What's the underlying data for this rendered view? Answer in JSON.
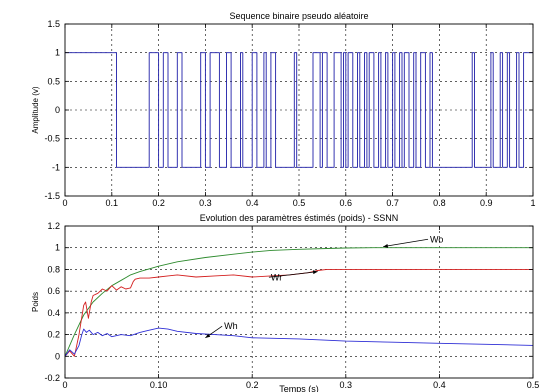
{
  "chart_data": [
    {
      "type": "line",
      "title": "Sequence binaire pseudo aléatoire",
      "xlabel": "",
      "ylabel": "Amplitude (v)",
      "xlim": [
        0,
        1
      ],
      "ylim": [
        -1.5,
        1.5
      ],
      "grid": true,
      "xticks": [
        "0",
        "0.1",
        "0.2",
        "0.3",
        "0.4",
        "0.5",
        "0.6",
        "0.7",
        "0.8",
        "0.9",
        "1"
      ],
      "yticks": [
        "-1.5",
        "-1",
        "-0.5",
        "0",
        "0.5",
        "1",
        "1.5"
      ],
      "colors": {
        "signal": "#1f1fa8"
      },
      "series": [
        {
          "style": "step",
          "x": [
            0,
            0.11,
            0.115,
            0.18,
            0.2,
            0.21,
            0.22,
            0.24,
            0.25,
            0.29,
            0.3,
            0.31,
            0.33,
            0.345,
            0.355,
            0.375,
            0.38,
            0.4,
            0.41,
            0.425,
            0.43,
            0.44,
            0.45,
            0.49,
            0.495,
            0.53,
            0.545,
            0.55,
            0.56,
            0.575,
            0.59,
            0.595,
            0.6,
            0.605,
            0.615,
            0.625,
            0.63,
            0.64,
            0.645,
            0.65,
            0.66,
            0.67,
            0.675,
            0.685,
            0.69,
            0.7,
            0.705,
            0.715,
            0.72,
            0.725,
            0.735,
            0.745,
            0.75,
            0.76,
            0.77,
            0.78,
            0.785,
            0.87,
            0.875,
            0.91,
            0.915,
            0.93,
            0.935,
            0.945,
            0.95,
            0.965,
            0.97,
            0.98,
            1.0
          ],
          "y": [
            1,
            -1,
            -1,
            1,
            -1,
            1,
            -1,
            1,
            -1,
            1,
            -1,
            1,
            -1,
            1,
            -1,
            1,
            -1,
            1,
            -1,
            1,
            -1,
            1,
            -1,
            1,
            -1,
            1,
            -1,
            1,
            -1,
            1,
            -1,
            1,
            -1,
            1,
            -1,
            1,
            -1,
            1,
            -1,
            1,
            -1,
            1,
            -1,
            1,
            -1,
            1,
            -1,
            1,
            -1,
            1,
            -1,
            1,
            -1,
            1,
            -1,
            1,
            -1,
            1,
            -1,
            1,
            -1,
            1,
            -1,
            1,
            -1,
            1,
            -1,
            1,
            1
          ]
        }
      ]
    },
    {
      "type": "line",
      "title": "Evolution des paramètres éstimés (poids) - SSNN",
      "xlabel": "Temps (s)",
      "ylabel": "Poids",
      "xlim": [
        0,
        0.5
      ],
      "ylim": [
        -0.2,
        1.2
      ],
      "grid": true,
      "xticks": [
        "0",
        "0.10",
        "0.2",
        "0.3",
        "0.4",
        "0.5"
      ],
      "yticks": [
        "-0.2",
        "0",
        "0.2",
        "0.4",
        "0.6",
        "0.8",
        "1",
        "1.2"
      ],
      "series": [
        {
          "name": "Wo",
          "color": "#2e8b2e",
          "x": [
            0,
            0.01,
            0.02,
            0.03,
            0.04,
            0.05,
            0.06,
            0.07,
            0.08,
            0.1,
            0.12,
            0.15,
            0.18,
            0.2,
            0.22,
            0.25,
            0.28,
            0.3,
            0.33,
            0.36,
            0.4,
            0.45,
            0.5
          ],
          "y": [
            0,
            0.2,
            0.38,
            0.5,
            0.58,
            0.65,
            0.7,
            0.75,
            0.78,
            0.83,
            0.87,
            0.91,
            0.94,
            0.96,
            0.975,
            0.985,
            0.993,
            0.997,
            1.0,
            1.0,
            1.0,
            1.0,
            1.0
          ]
        },
        {
          "name": "Wr",
          "color": "#d42020",
          "x": [
            0,
            0.005,
            0.01,
            0.015,
            0.02,
            0.022,
            0.025,
            0.028,
            0.03,
            0.035,
            0.04,
            0.045,
            0.05,
            0.055,
            0.06,
            0.065,
            0.07,
            0.073,
            0.075,
            0.08,
            0.09,
            0.1,
            0.11,
            0.12,
            0.14,
            0.16,
            0.18,
            0.2,
            0.22,
            0.24,
            0.26,
            0.27,
            0.28,
            0.29,
            0.3,
            0.35,
            0.4,
            0.45,
            0.5
          ],
          "y": [
            0.0,
            0.05,
            0.0,
            0.2,
            0.47,
            0.5,
            0.35,
            0.5,
            0.56,
            0.58,
            0.62,
            0.6,
            0.65,
            0.61,
            0.64,
            0.62,
            0.63,
            0.69,
            0.71,
            0.72,
            0.72,
            0.73,
            0.74,
            0.75,
            0.73,
            0.74,
            0.75,
            0.73,
            0.74,
            0.75,
            0.77,
            0.79,
            0.8,
            0.8,
            0.8,
            0.8,
            0.8,
            0.8,
            0.8
          ]
        },
        {
          "name": "Wh",
          "color": "#2f2fd6",
          "x": [
            0,
            0.005,
            0.01,
            0.015,
            0.018,
            0.02,
            0.023,
            0.026,
            0.03,
            0.035,
            0.04,
            0.045,
            0.05,
            0.06,
            0.07,
            0.08,
            0.09,
            0.1,
            0.11,
            0.12,
            0.14,
            0.16,
            0.18,
            0.2,
            0.25,
            0.3,
            0.35,
            0.4,
            0.45,
            0.5
          ],
          "y": [
            0.0,
            0.06,
            0.02,
            0.1,
            0.2,
            0.25,
            0.22,
            0.24,
            0.2,
            0.22,
            0.19,
            0.21,
            0.18,
            0.2,
            0.19,
            0.22,
            0.24,
            0.26,
            0.25,
            0.23,
            0.21,
            0.2,
            0.19,
            0.17,
            0.16,
            0.14,
            0.13,
            0.12,
            0.11,
            0.1
          ]
        }
      ],
      "annotations": [
        {
          "text": "Wo",
          "x": 0.39,
          "y": 1.05,
          "arrow_to": [
            0.34,
            1.01
          ]
        },
        {
          "text": "Wr",
          "x": 0.22,
          "y": 0.7,
          "arrow_to": [
            0.27,
            0.78
          ]
        },
        {
          "text": "Wh",
          "x": 0.17,
          "y": 0.25,
          "arrow_to": [
            0.15,
            0.17
          ]
        }
      ]
    }
  ]
}
